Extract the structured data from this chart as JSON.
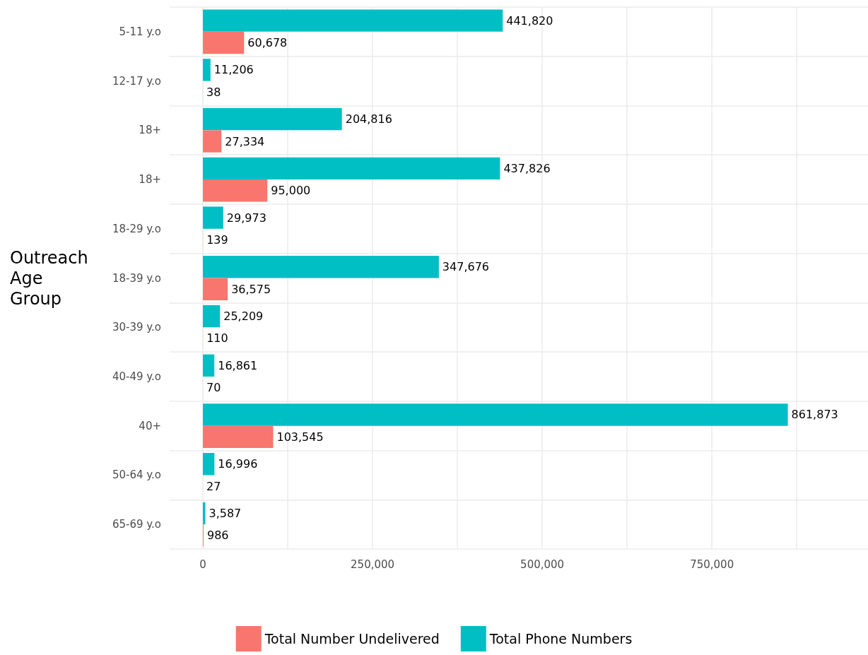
{
  "chart_data": {
    "type": "bar",
    "orientation": "horizontal",
    "ylabel": "Outreach\nAge\nGroup",
    "categories": [
      "5-11 y.o",
      "12-17 y.o",
      "18+",
      "18+",
      "18-29 y.o",
      "18-39 y.o",
      "30-39 y.o",
      "40-49 y.o",
      "40+",
      "50-64 y.o",
      "65-69 y.o"
    ],
    "series": [
      {
        "name": "Total Number Undelivered",
        "color": "#f8766d",
        "values": [
          60678,
          38,
          27334,
          95000,
          139,
          36575,
          110,
          70,
          103545,
          27,
          986
        ],
        "value_labels": [
          "60,678",
          "38",
          "27,334",
          "95,000",
          "139",
          "36,575",
          "110",
          "70",
          "103,545",
          "27",
          "986"
        ]
      },
      {
        "name": "Total Phone Numbers",
        "color": "#00bfc4",
        "values": [
          441820,
          11206,
          204816,
          437826,
          29973,
          347676,
          25209,
          16861,
          861873,
          16996,
          3587
        ],
        "value_labels": [
          "441,820",
          "11,206",
          "204,816",
          "437,826",
          "29,973",
          "347,676",
          "25,209",
          "16,861",
          "861,873",
          "16,996",
          "3,587"
        ]
      }
    ],
    "xlim": [
      -49000,
      980000
    ],
    "xticks": [
      0,
      {
        "value": 125000,
        "label": null
      },
      {
        "value": 250000,
        "label": "250,000"
      },
      {
        "value": 375000,
        "label": null
      },
      {
        "value": 500000,
        "label": "500,000"
      },
      {
        "value": 625000,
        "label": null
      },
      {
        "value": 750000,
        "label": "750,000"
      },
      {
        "value": 875000,
        "label": null
      }
    ],
    "grid": true,
    "legend": "bottom"
  }
}
